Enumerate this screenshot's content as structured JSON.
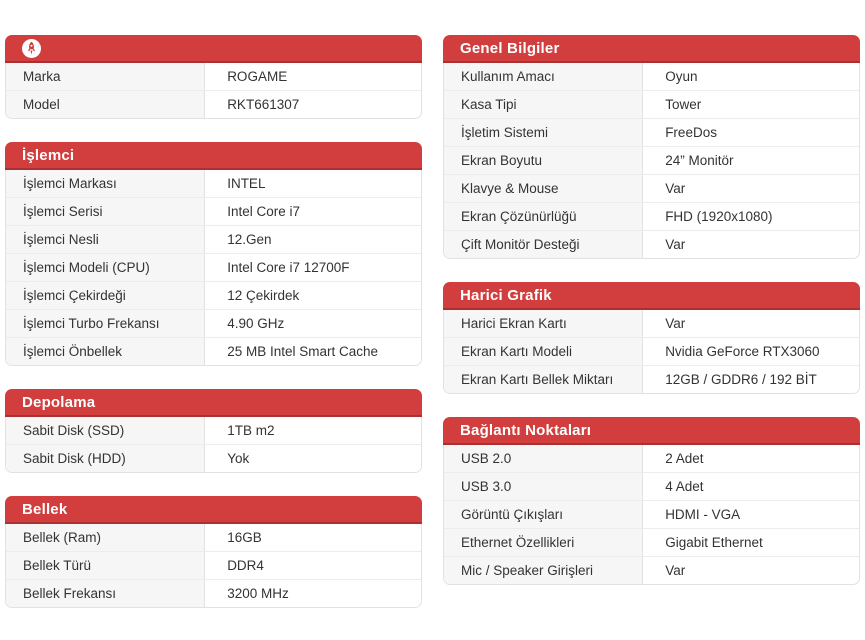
{
  "theme": {
    "header_red": "#d23d3d",
    "header_red_dark": "#aa3131",
    "label_cell_bg": "#f6f6f6",
    "border_color": "#e2e2e2",
    "text_color": "#333333",
    "logo_icon": "rocket-brand-icon"
  },
  "columns": {
    "left": [
      {
        "id": "brand-info",
        "title": "",
        "has_logo": true,
        "rows": [
          {
            "label": "Marka",
            "value": "ROGAME"
          },
          {
            "label": "Model",
            "value": "RKT661307"
          }
        ]
      },
      {
        "id": "islemci",
        "title": "İşlemci",
        "rows": [
          {
            "label": "İşlemci Markası",
            "value": "INTEL"
          },
          {
            "label": "İşlemci Serisi",
            "value": "Intel Core i7"
          },
          {
            "label": "İşlemci Nesli",
            "value": "12.Gen"
          },
          {
            "label": "İşlemci Modeli (CPU)",
            "value": "Intel Core i7 12700F"
          },
          {
            "label": "İşlemci Çekirdeği",
            "value": "12 Çekirdek"
          },
          {
            "label": "İşlemci Turbo Frekansı",
            "value": "4.90 GHz"
          },
          {
            "label": "İşlemci Önbellek",
            "value": "25 MB Intel Smart Cache"
          }
        ]
      },
      {
        "id": "depolama",
        "title": "Depolama",
        "rows": [
          {
            "label": "Sabit Disk (SSD)",
            "value": "1TB m2"
          },
          {
            "label": "Sabit Disk (HDD)",
            "value": "Yok"
          }
        ]
      },
      {
        "id": "bellek",
        "title": "Bellek",
        "rows": [
          {
            "label": "Bellek (Ram)",
            "value": "16GB"
          },
          {
            "label": "Bellek Türü",
            "value": "DDR4"
          },
          {
            "label": "Bellek Frekansı",
            "value": "3200 MHz"
          }
        ]
      }
    ],
    "right": [
      {
        "id": "genel-bilgiler",
        "title": "Genel Bilgiler",
        "rows": [
          {
            "label": "Kullanım Amacı",
            "value": "Oyun"
          },
          {
            "label": "Kasa Tipi",
            "value": "Tower"
          },
          {
            "label": "İşletim Sistemi",
            "value": "FreeDos"
          },
          {
            "label": "Ekran Boyutu",
            "value": "24” Monitör"
          },
          {
            "label": "Klavye & Mouse",
            "value": "Var"
          },
          {
            "label": "Ekran Çözünürlüğü",
            "value": "FHD (1920x1080)"
          },
          {
            "label": "Çift Monitör Desteği",
            "value": "Var"
          }
        ]
      },
      {
        "id": "harici-grafik",
        "title": "Harici Grafik",
        "rows": [
          {
            "label": "Harici Ekran Kartı",
            "value": "Var"
          },
          {
            "label": "Ekran Kartı Modeli",
            "value": "Nvidia GeForce RTX3060"
          },
          {
            "label": "Ekran Kartı Bellek Miktarı",
            "value": "12GB / GDDR6 / 192 BİT"
          }
        ]
      },
      {
        "id": "baglanti-noktalari",
        "title": "Bağlantı Noktaları",
        "rows": [
          {
            "label": "USB 2.0",
            "value": "2 Adet"
          },
          {
            "label": "USB 3.0",
            "value": "4 Adet"
          },
          {
            "label": "Görüntü Çıkışları",
            "value": "HDMI - VGA"
          },
          {
            "label": "Ethernet Özellikleri",
            "value": "Gigabit Ethernet"
          },
          {
            "label": "Mic / Speaker Girişleri",
            "value": "Var"
          }
        ]
      }
    ]
  }
}
